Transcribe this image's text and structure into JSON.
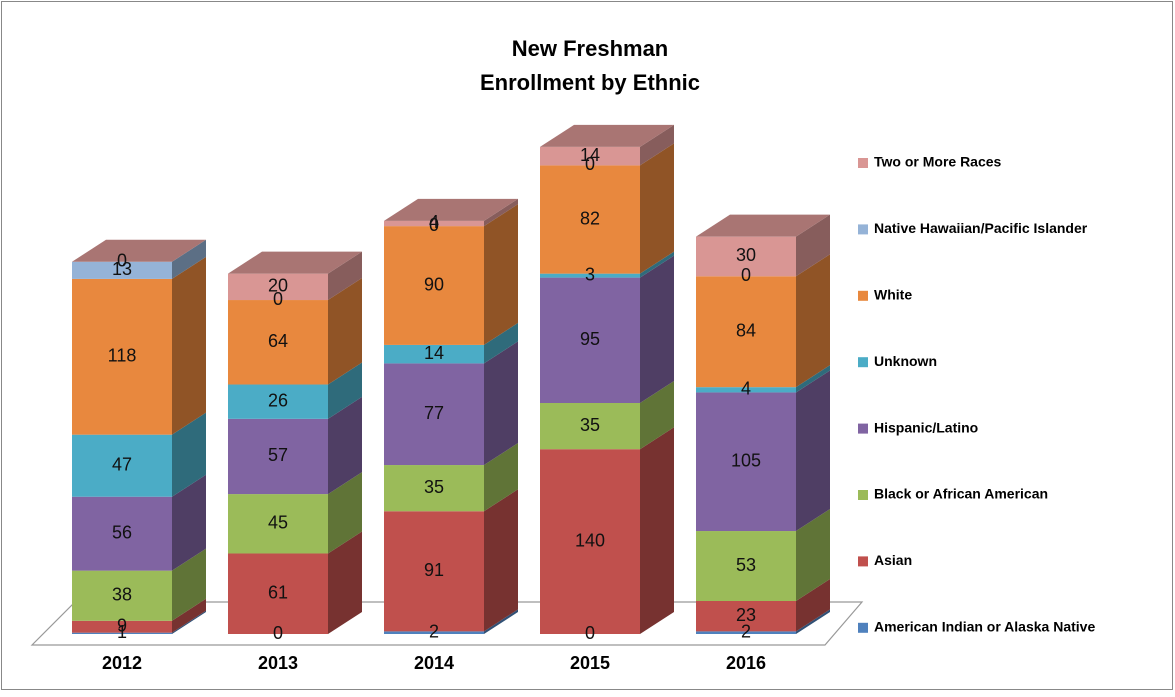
{
  "chart_data": {
    "type": "bar3d_stacked",
    "title": [
      "New Freshman",
      "Enrollment by Ethnic"
    ],
    "categories": [
      "2012",
      "2013",
      "2014",
      "2015",
      "2016"
    ],
    "series": [
      {
        "name": "American Indian or Alaska Native",
        "color": "#4f81bd",
        "values": [
          1,
          0,
          2,
          0,
          2
        ]
      },
      {
        "name": "Asian",
        "color": "#c0504d",
        "values": [
          9,
          61,
          91,
          140,
          23
        ]
      },
      {
        "name": "Black or African American",
        "color": "#9bbb59",
        "values": [
          38,
          45,
          35,
          35,
          53
        ]
      },
      {
        "name": "Hispanic/Latino",
        "color": "#8064a2",
        "values": [
          56,
          57,
          77,
          95,
          105
        ]
      },
      {
        "name": "Unknown",
        "color": "#4bacc6",
        "values": [
          47,
          26,
          14,
          3,
          4
        ]
      },
      {
        "name": "White",
        "color": "#e8883e",
        "values": [
          118,
          64,
          90,
          82,
          84
        ]
      },
      {
        "name": "Native Hawaiian/Pacific Islander",
        "color": "#95b3d7",
        "values": [
          13,
          0,
          0,
          0,
          0
        ]
      },
      {
        "name": "Two or More Races",
        "color": "#d99694",
        "values": [
          0,
          20,
          4,
          14,
          30
        ]
      }
    ],
    "legend": "right"
  }
}
